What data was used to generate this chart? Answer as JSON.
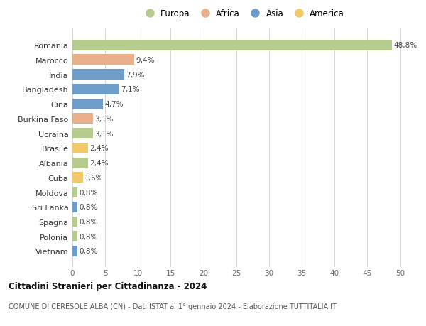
{
  "countries": [
    "Romania",
    "Marocco",
    "India",
    "Bangladesh",
    "Cina",
    "Burkina Faso",
    "Ucraina",
    "Brasile",
    "Albania",
    "Cuba",
    "Moldova",
    "Sri Lanka",
    "Spagna",
    "Polonia",
    "Vietnam"
  ],
  "values": [
    48.8,
    9.4,
    7.9,
    7.1,
    4.7,
    3.1,
    3.1,
    2.4,
    2.4,
    1.6,
    0.8,
    0.8,
    0.8,
    0.8,
    0.8
  ],
  "labels": [
    "48,8%",
    "9,4%",
    "7,9%",
    "7,1%",
    "4,7%",
    "3,1%",
    "3,1%",
    "2,4%",
    "2,4%",
    "1,6%",
    "0,8%",
    "0,8%",
    "0,8%",
    "0,8%",
    "0,8%"
  ],
  "continents": [
    "Europa",
    "Africa",
    "Asia",
    "Asia",
    "Asia",
    "Africa",
    "Europa",
    "America",
    "Europa",
    "America",
    "Europa",
    "Asia",
    "Europa",
    "Europa",
    "Asia"
  ],
  "colors": {
    "Europa": "#b5cc8e",
    "Africa": "#e8b08a",
    "Asia": "#6f9dc9",
    "America": "#f0c96a"
  },
  "legend_order": [
    "Europa",
    "Africa",
    "Asia",
    "America"
  ],
  "title": "Cittadini Stranieri per Cittadinanza - 2024",
  "subtitle": "COMUNE DI CERESOLE ALBA (CN) - Dati ISTAT al 1° gennaio 2024 - Elaborazione TUTTITALIA.IT",
  "xlim": [
    0,
    52
  ],
  "xticks": [
    0,
    5,
    10,
    15,
    20,
    25,
    30,
    35,
    40,
    45,
    50
  ],
  "background_color": "#ffffff",
  "grid_color": "#d0d0d0"
}
